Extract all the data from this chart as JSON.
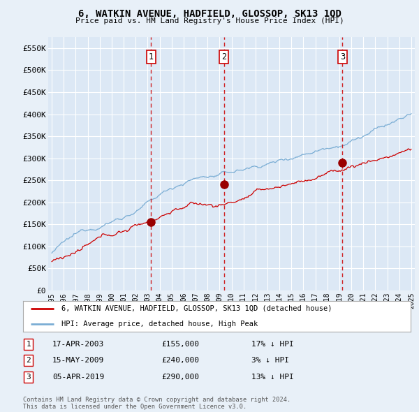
{
  "title": "6, WATKIN AVENUE, HADFIELD, GLOSSOP, SK13 1QD",
  "subtitle": "Price paid vs. HM Land Registry's House Price Index (HPI)",
  "ylim": [
    0,
    575000
  ],
  "yticks": [
    0,
    50000,
    100000,
    150000,
    200000,
    250000,
    300000,
    350000,
    400000,
    450000,
    500000,
    550000
  ],
  "ytick_labels": [
    "£0",
    "£50K",
    "£100K",
    "£150K",
    "£200K",
    "£250K",
    "£300K",
    "£350K",
    "£400K",
    "£450K",
    "£500K",
    "£550K"
  ],
  "xlim_start": 1994.7,
  "xlim_end": 2025.3,
  "background_color": "#e8f0f8",
  "plot_bg_color": "#dce8f5",
  "grid_color": "#ffffff",
  "red_line_color": "#cc0000",
  "blue_line_color": "#7aadd4",
  "sale_marker_color": "#990000",
  "dashed_line_color": "#cc0000",
  "sales": [
    {
      "year": 2003.29,
      "price": 155000,
      "label": "1",
      "date": "17-APR-2003",
      "pct": "17% ↓ HPI"
    },
    {
      "year": 2009.37,
      "price": 240000,
      "label": "2",
      "date": "15-MAY-2009",
      "pct": "3% ↓ HPI"
    },
    {
      "year": 2019.26,
      "price": 290000,
      "label": "3",
      "date": "05-APR-2019",
      "pct": "13% ↓ HPI"
    }
  ],
  "legend1_label": "6, WATKIN AVENUE, HADFIELD, GLOSSOP, SK13 1QD (detached house)",
  "legend2_label": "HPI: Average price, detached house, High Peak",
  "footer1": "Contains HM Land Registry data © Crown copyright and database right 2024.",
  "footer2": "This data is licensed under the Open Government Licence v3.0."
}
